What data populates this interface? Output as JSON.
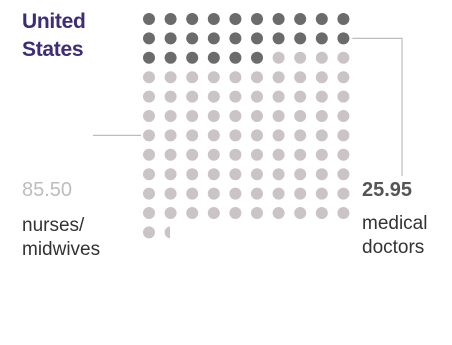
{
  "chart_data": {
    "type": "waffle",
    "title": "United States",
    "title_lines": [
      "United",
      "States"
    ],
    "grid_columns": 10,
    "total_units": 111.45,
    "series": [
      {
        "name": "medical doctors",
        "value": 25.95,
        "value_label": "25.95",
        "label_lines": [
          "medical",
          "doctors"
        ],
        "color": "#6b6b6b"
      },
      {
        "name": "nurses/midwives",
        "value": 85.5,
        "value_label": "85.50",
        "label_lines": [
          "nurses/",
          "midwives"
        ],
        "color": "#cbc4c6"
      }
    ],
    "colors": {
      "title": "#3d2c7a",
      "leader_line": "#bdbdbd"
    }
  }
}
